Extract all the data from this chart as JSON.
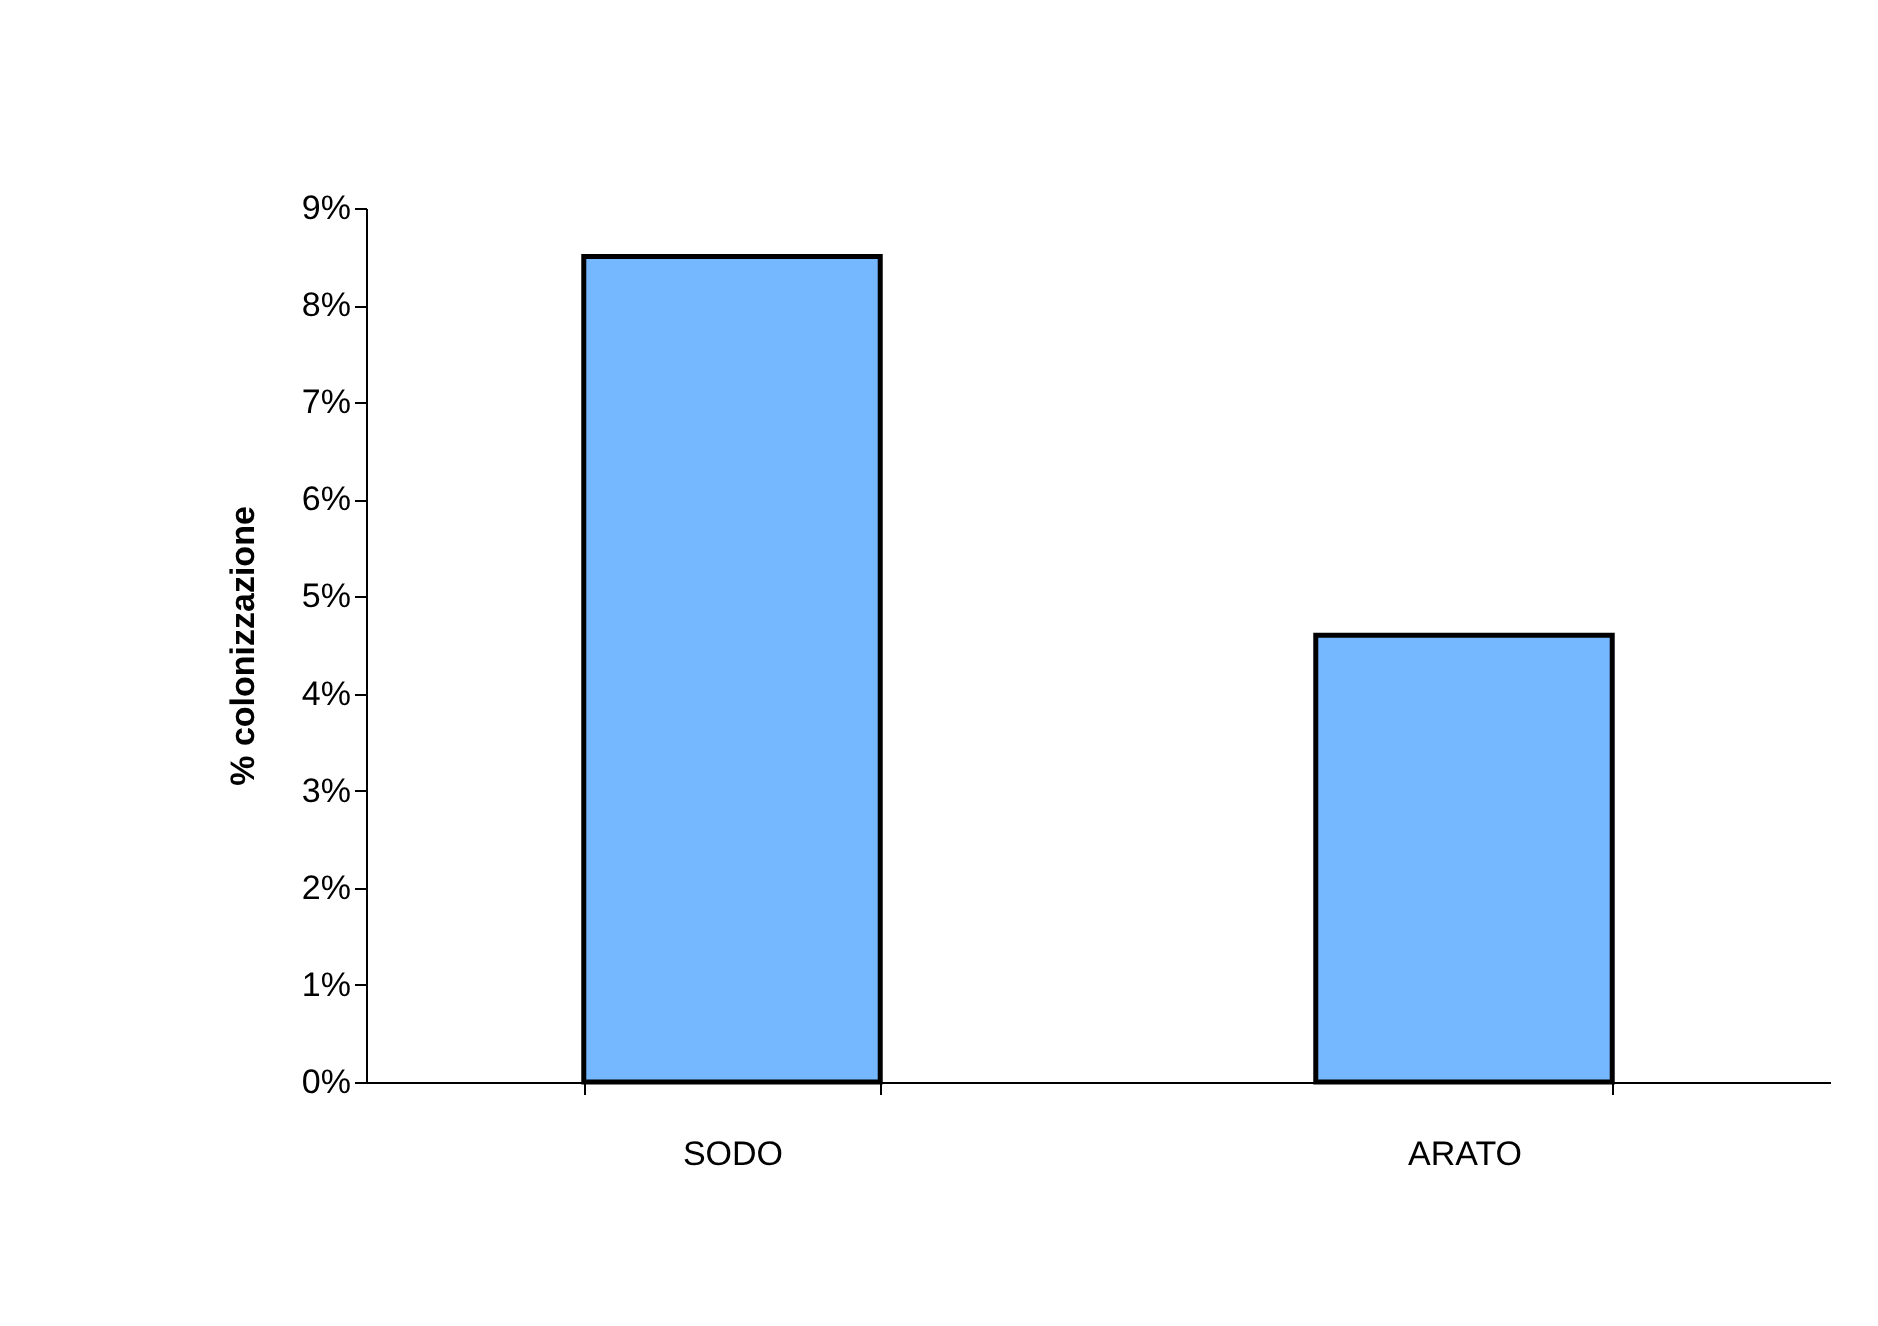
{
  "chart_data": {
    "type": "bar",
    "ylabel": "% colonizzazione",
    "categories": [
      "SODO",
      "ARATO"
    ],
    "values": [
      8.5,
      4.6
    ],
    "color": "#75b8ff",
    "ylim": [
      0,
      9
    ],
    "yticks": [
      {
        "value": 0,
        "label": "0%"
      },
      {
        "value": 1,
        "label": "1%"
      },
      {
        "value": 2,
        "label": "2%"
      },
      {
        "value": 3,
        "label": "3%"
      },
      {
        "value": 4,
        "label": "4%"
      },
      {
        "value": 5,
        "label": "5%"
      },
      {
        "value": 6,
        "label": "6%"
      },
      {
        "value": 7,
        "label": "7%"
      },
      {
        "value": 8,
        "label": "8%"
      },
      {
        "value": 9,
        "label": "9%"
      }
    ],
    "grid": false
  }
}
